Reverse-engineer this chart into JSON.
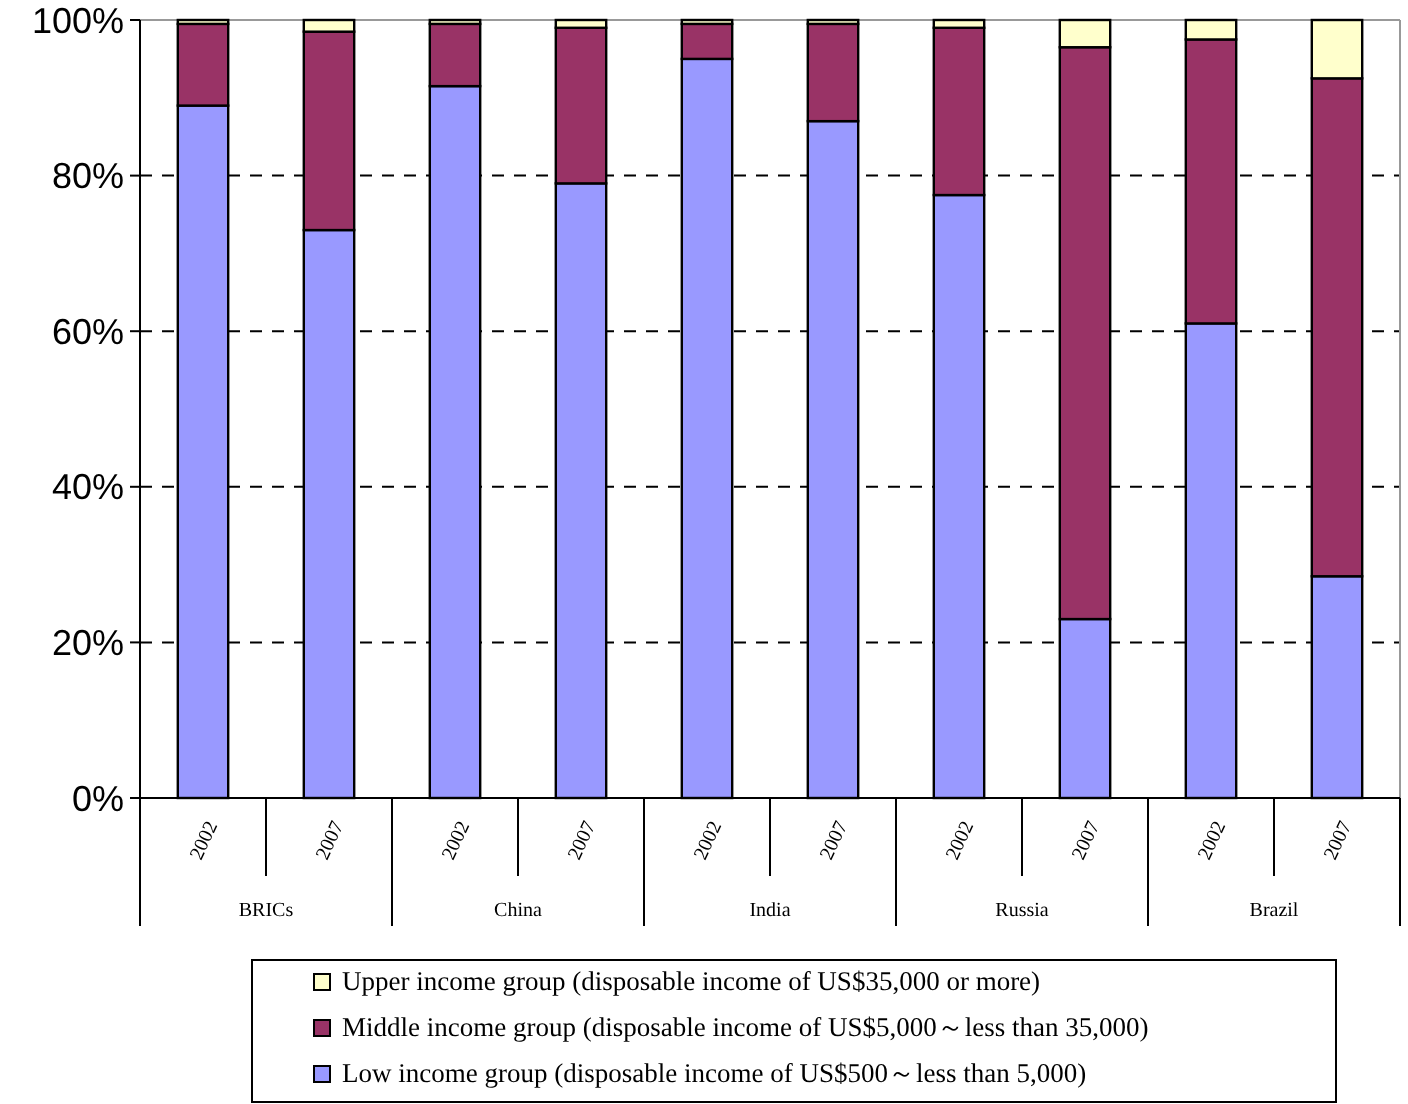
{
  "chart_data": {
    "type": "bar",
    "stacked": true,
    "categories": [
      "2002",
      "2007",
      "2002",
      "2007",
      "2002",
      "2007",
      "2002",
      "2007",
      "2002",
      "2007"
    ],
    "annotations": [
      "BRICs",
      "China",
      "India",
      "Russia",
      "Brazil"
    ],
    "series": [
      {
        "name": "Low income group (disposable income of US$500～less than 5,000)",
        "color": "#9999ff",
        "values": [
          89,
          73,
          91.5,
          79,
          95,
          87,
          77.5,
          23,
          61,
          28.5
        ]
      },
      {
        "name": "Middle income group (disposable income of US$5,000～less than 35,000)",
        "color": "#993366",
        "values": [
          10.5,
          25.5,
          8,
          20,
          4.5,
          12.5,
          21.5,
          73.5,
          36.5,
          64
        ]
      },
      {
        "name": "Upper income group (disposable income of US$35,000 or more)",
        "color": "#ffffcc",
        "values": [
          0.5,
          1.5,
          0.5,
          1,
          0.5,
          0.5,
          1,
          3.5,
          2.5,
          7.5
        ]
      }
    ],
    "ylim": [
      0,
      100
    ],
    "yticks": [
      {
        "value": 0,
        "label": "0%"
      },
      {
        "value": 20,
        "label": "20%"
      },
      {
        "value": 40,
        "label": "40%"
      },
      {
        "value": 60,
        "label": "60%"
      },
      {
        "value": 80,
        "label": "80%"
      },
      {
        "value": 100,
        "label": "100%"
      }
    ],
    "grid": "y",
    "legend": "bottom"
  }
}
